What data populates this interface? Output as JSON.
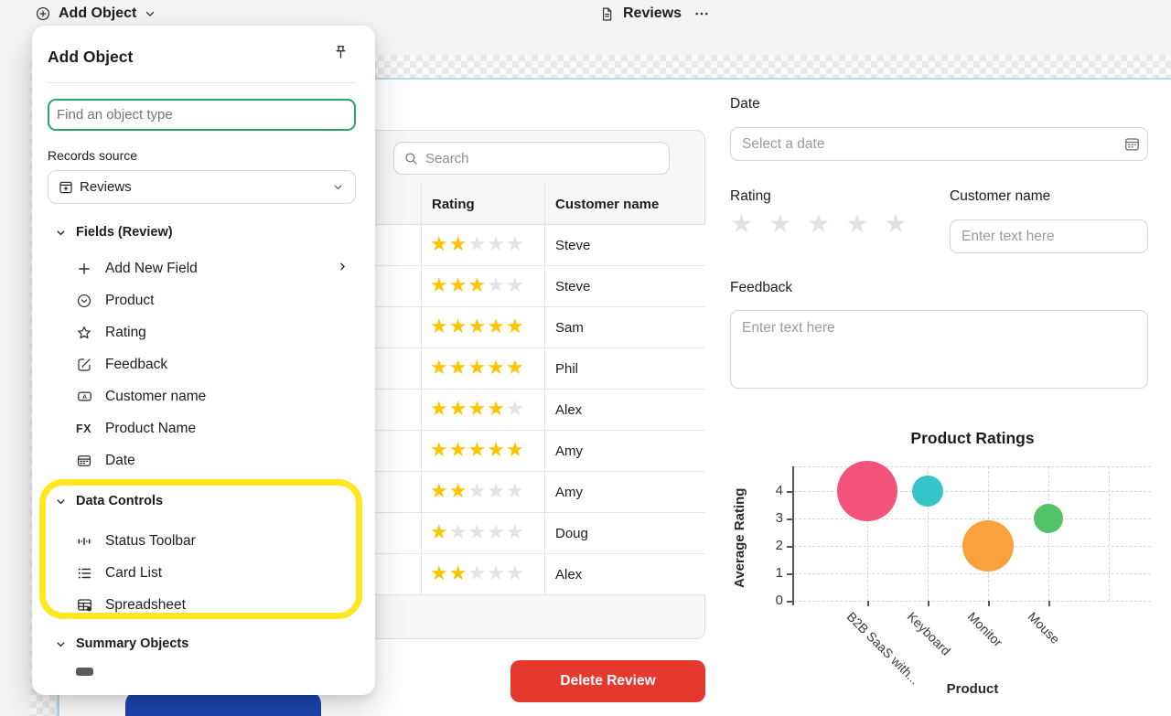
{
  "topbar": {
    "add_object_label": "Add Object",
    "tab_title": "Reviews"
  },
  "popover": {
    "title": "Add Object",
    "search_placeholder": "Find an object type",
    "records_source": {
      "label": "Records source",
      "value": "Reviews"
    },
    "fields_section": {
      "label": "Fields (Review)",
      "items": [
        "Add New Field",
        "Product",
        "Rating",
        "Feedback",
        "Customer name",
        "Product Name",
        "Date"
      ]
    },
    "data_controls_section": {
      "label": "Data Controls",
      "items": [
        "Status Toolbar",
        "Card List",
        "Spreadsheet"
      ]
    },
    "summary_section": {
      "label": "Summary Objects"
    }
  },
  "table_widget": {
    "search_placeholder": "Search",
    "columns": [
      "Rating",
      "Customer name"
    ],
    "max_stars": 5,
    "rows": [
      {
        "rating": 2,
        "customer": "Steve"
      },
      {
        "rating": 3,
        "customer": "Steve"
      },
      {
        "rating": 5,
        "customer": "Sam"
      },
      {
        "rating": 5,
        "customer": "Phil"
      },
      {
        "rating": 4,
        "customer": "Alex"
      },
      {
        "rating": 5,
        "customer": "Amy"
      },
      {
        "rating": 2,
        "customer": "Amy"
      },
      {
        "rating": 1,
        "customer": "Doug"
      },
      {
        "rating": 2,
        "customer": "Alex"
      }
    ]
  },
  "detail_form": {
    "date": {
      "label": "Date",
      "placeholder": "Select a date"
    },
    "rating": {
      "label": "Rating",
      "value": 0,
      "max": 5
    },
    "customer_name": {
      "label": "Customer name",
      "placeholder": "Enter text here"
    },
    "feedback": {
      "label": "Feedback",
      "placeholder": "Enter text here"
    },
    "delete_button_label": "Delete Review"
  },
  "chart_data": {
    "type": "scatter",
    "title": "Product Ratings",
    "xlabel": "Product",
    "ylabel": "Average Rating",
    "categories": [
      "B2B SaaS with...",
      "Keyboard",
      "Monitor",
      "Mouse"
    ],
    "yticks": [
      0,
      1,
      2,
      3,
      4
    ],
    "ylim": [
      0,
      4.9
    ],
    "grid": true,
    "points": [
      {
        "category": "B2B SaaS with...",
        "avg_rating": 4,
        "radius_px": 33,
        "color": "#f3527b"
      },
      {
        "category": "Keyboard",
        "avg_rating": 4,
        "radius_px": 17,
        "color": "#35c4c8"
      },
      {
        "category": "Monitor",
        "avg_rating": 2,
        "radius_px": 28,
        "color": "#f9a23c"
      },
      {
        "category": "Mouse",
        "avg_rating": 3,
        "radius_px": 16,
        "color": "#52c368"
      }
    ]
  },
  "icons": {
    "star_glyph": "★",
    "fx": "FX",
    "letter_a": "A"
  },
  "colors": {
    "star_filled": "#ffc400",
    "star_empty": "#e3e3e5",
    "focus_green": "#28a669",
    "highlight_yellow": "#ffe81f",
    "delete_red": "#e6392e",
    "primary_blue": "#1c46af",
    "canvas_border": "#b7dcec"
  }
}
